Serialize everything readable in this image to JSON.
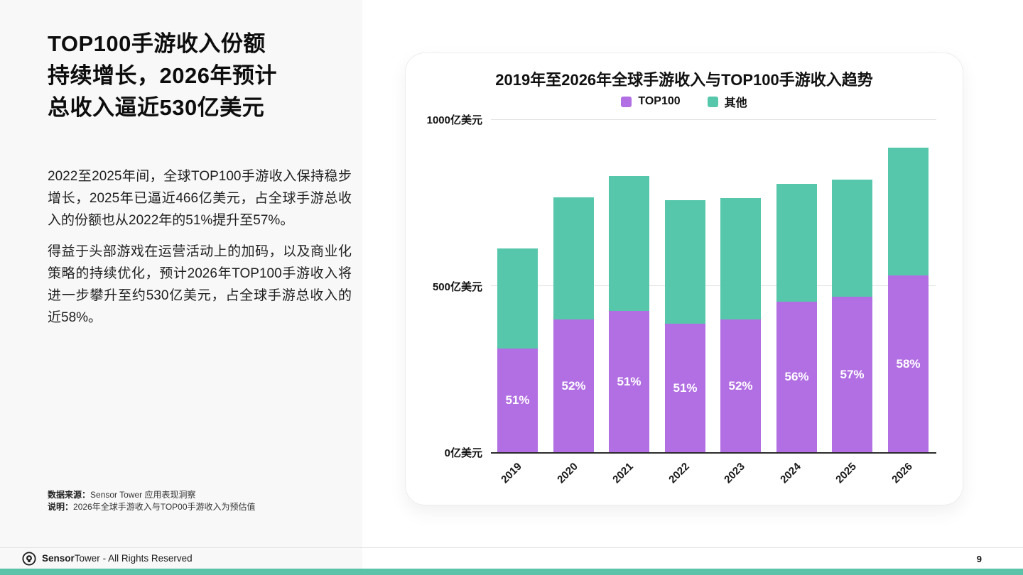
{
  "left_panel": {
    "title_lines": [
      "TOP100手游收入份额",
      "持续增长，2026年预计",
      "总收入逼近530亿美元"
    ],
    "paragraphs": [
      "2022至2025年间，全球TOP100手游收入保持稳步增长，2025年已逼近466亿美元，占全球手游总收入的份额也从2022年的51%提升至57%。",
      "得益于头部游戏在运营活动上的加码，以及商业化策略的持续优化，预计2026年TOP100手游收入将进一步攀升至约530亿美元，占全球手游总收入的近58%。"
    ],
    "notes": [
      {
        "label": "数据来源：",
        "text": "Sensor Tower 应用表现洞察"
      },
      {
        "label": "说明：",
        "text": "2026年全球手游收入与TOP00手游收入为预估值"
      }
    ]
  },
  "footer": {
    "brand_bold": "Sensor",
    "brand_regular": "Tower",
    "rights": "- All Rights Reserved",
    "page_number": "9"
  },
  "colors": {
    "top100": "#b26fe3",
    "other": "#57c7ab",
    "accent_strip": "#5bc4a8"
  },
  "chart_data": {
    "type": "bar",
    "stacked": true,
    "title": "2019年至2026年全球手游收入与TOP100手游收入趋势",
    "unit": "亿美元",
    "categories": [
      "2019",
      "2020",
      "2021",
      "2022",
      "2023",
      "2024",
      "2025",
      "2026"
    ],
    "series": [
      {
        "name": "TOP100",
        "color": "#b26fe3",
        "values": [
          312,
          398,
          425,
          385,
          398,
          451,
          466,
          530
        ]
      },
      {
        "name": "其他",
        "color": "#57c7ab",
        "values": [
          300,
          367,
          405,
          370,
          365,
          354,
          352,
          384
        ]
      }
    ],
    "totals": [
      612,
      765,
      830,
      755,
      763,
      805,
      818,
      914
    ],
    "bar_labels": [
      "51%",
      "52%",
      "51%",
      "51%",
      "52%",
      "56%",
      "57%",
      "58%"
    ],
    "ylim": [
      0,
      1000
    ],
    "y_ticks": [
      {
        "value": 0,
        "label": "0亿美元"
      },
      {
        "value": 500,
        "label": "500亿美元"
      },
      {
        "value": 1000,
        "label": "1000亿美元"
      }
    ],
    "grid": true,
    "legend_position": "top"
  }
}
